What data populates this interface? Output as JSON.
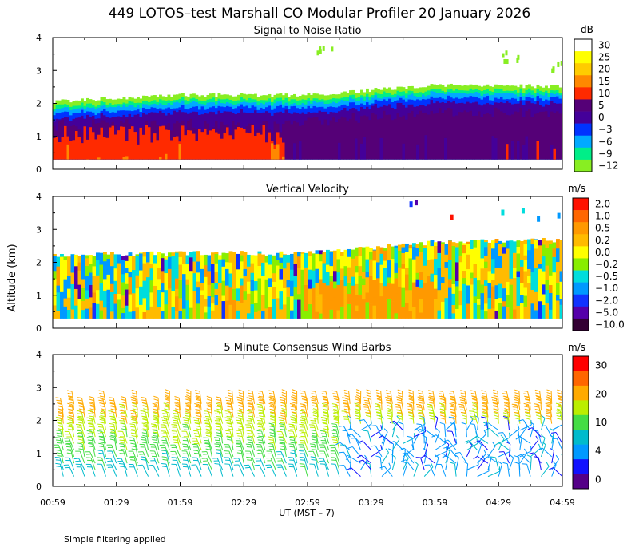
{
  "title": "449 LOTOS–test Marshall CO Modular Profiler 20 January 2026",
  "y_axis_label": "Altitude (km)",
  "x_axis_label": "UT  (MST – 7)",
  "x_tick_labels": [
    "00:59",
    "01:29",
    "01:59",
    "02:29",
    "02:59",
    "03:29",
    "03:59",
    "04:29",
    "04:59"
  ],
  "y_tick_labels": [
    "0",
    "1",
    "2",
    "3",
    "4"
  ],
  "footnote": "Simple filtering applied",
  "panels": {
    "snr": {
      "title": "Signal to Noise Ratio",
      "unit": "dB",
      "colorbar_labels": [
        "30",
        "25",
        "20",
        "15",
        "10",
        "5",
        "0",
        "−3",
        "−6",
        "−9",
        "−12"
      ]
    },
    "vv": {
      "title": "Vertical Velocity",
      "unit": "m/s",
      "colorbar_labels": [
        "2.0",
        "1.0",
        "0.5",
        "0.2",
        "0.0",
        "−0.2",
        "−0.5",
        "−1.0",
        "−2.0",
        "−5.0",
        "−10.0"
      ]
    },
    "wind": {
      "title": "5 Minute Consensus Wind Barbs",
      "unit": "m/s",
      "colorbar_labels": [
        "30",
        "20",
        "10",
        "4",
        "0"
      ]
    }
  },
  "colors": {
    "snr_scale": [
      "#ffffff",
      "#ffff00",
      "#ffcc00",
      "#ff8800",
      "#ff2a00",
      "#550077",
      "#440099",
      "#0033ff",
      "#00aaff",
      "#00ee88",
      "#88ee22"
    ],
    "vv_scale": [
      "#ff1100",
      "#ff6600",
      "#ff9900",
      "#ffbb00",
      "#ffff00",
      "#88ee00",
      "#00dddd",
      "#0099ff",
      "#1133ff",
      "#5500aa",
      "#330033"
    ],
    "wind_scale": [
      "#ff0000",
      "#ff6600",
      "#ffaa00",
      "#bbee00",
      "#44dd44",
      "#00bbcc",
      "#0099ff",
      "#1111ff",
      "#550088"
    ]
  },
  "chart_data": [
    {
      "type": "heatmap",
      "title": "Signal to Noise Ratio",
      "x_range": [
        "00:59",
        "04:59"
      ],
      "ylim": [
        0,
        4
      ],
      "ylabel": "Altitude (km)",
      "colorbar_unit": "dB",
      "colorbar_ticks": [
        30,
        25,
        20,
        15,
        10,
        5,
        0,
        -3,
        -6,
        -9,
        -12
      ],
      "data_top_km": {
        "time_fraction": [
          0,
          0.25,
          0.5,
          0.75,
          1.0
        ],
        "values": [
          2.0,
          2.2,
          2.2,
          2.5,
          2.45
        ]
      },
      "core_layer": {
        "early": "15–10 dB (red) below ~1.6 km",
        "late": "5–0 dB (purple) below ~2.0 km"
      }
    },
    {
      "type": "heatmap",
      "title": "Vertical Velocity",
      "x_range": [
        "00:59",
        "04:59"
      ],
      "ylim": [
        0,
        4
      ],
      "ylabel": "Altitude (km)",
      "colorbar_unit": "m/s",
      "colorbar_ticks": [
        2.0,
        1.0,
        0.5,
        0.2,
        0.0,
        -0.2,
        -0.5,
        -1.0,
        -2.0,
        -5.0,
        -10.0
      ],
      "data_top_km": {
        "time_fraction": [
          0,
          0.25,
          0.5,
          0.75,
          1.0
        ],
        "values": [
          2.15,
          2.2,
          2.2,
          2.55,
          2.6
        ]
      }
    },
    {
      "type": "scatter",
      "title": "5 Minute Consensus Wind Barbs",
      "x_range": [
        "00:59",
        "04:59"
      ],
      "ylim": [
        0,
        4
      ],
      "ylabel": "Altitude (km)",
      "colorbar_unit": "m/s",
      "colorbar_ticks": [
        30,
        20,
        10,
        4,
        0
      ],
      "interval_minutes": 5,
      "gate_heights_km": [
        0.3,
        0.5,
        0.7,
        0.9,
        1.1,
        1.3,
        1.5,
        1.7,
        1.9,
        2.1,
        2.3,
        2.5
      ]
    }
  ]
}
